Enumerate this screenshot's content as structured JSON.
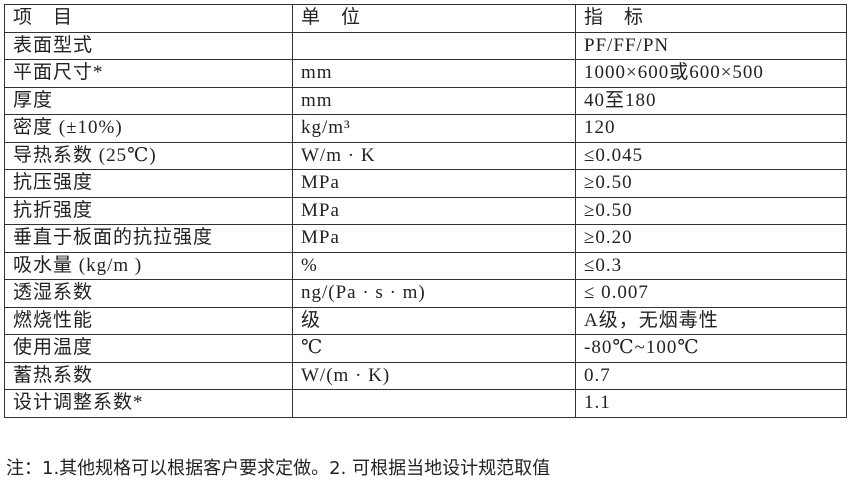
{
  "table": {
    "header": [
      "项　目",
      "单　位",
      "指　标"
    ],
    "rows": [
      [
        "表面型式",
        "",
        "PF/FF/PN"
      ],
      [
        "平面尺寸*",
        "mm",
        "1000×600或600×500"
      ],
      [
        "厚度",
        "mm",
        "40至180"
      ],
      [
        "密度 (±10%)",
        "kg/m³",
        "120"
      ],
      [
        "导热系数 (25℃)",
        "W/m · K",
        "≤0.045"
      ],
      [
        "抗压强度",
        "MPa",
        "≥0.50"
      ],
      [
        "抗折强度",
        "MPa",
        "≥0.50"
      ],
      [
        "垂直于板面的抗拉强度",
        "MPa",
        "≥0.20"
      ],
      [
        "吸水量 (kg/m )",
        "%",
        "≤0.3"
      ],
      [
        "透湿系数",
        "ng/(Pa · s · m)",
        "≤ 0.007"
      ],
      [
        "燃烧性能",
        "级",
        "A级，无烟毒性"
      ],
      [
        "使用温度",
        "℃",
        "-80℃~100℃"
      ],
      [
        "蓄热系数",
        "W/(m · K)",
        "0.7"
      ],
      [
        "设计调整系数*",
        "",
        "1.1"
      ]
    ]
  },
  "note": "注：1.其他规格可以根据客户要求定做。2. 可根据当地设计规范取值"
}
